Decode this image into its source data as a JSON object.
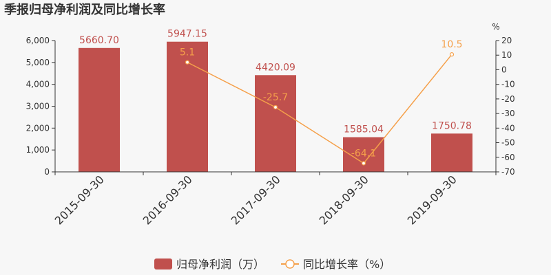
{
  "title": "季报归母净利润及同比增长率",
  "colors": {
    "bar": "#c0504d",
    "line": "#f5a04a",
    "axis": "#333333",
    "background": "#f7f7f7"
  },
  "chart_data": {
    "type": "bar",
    "title": "季报归母净利润及同比增长率",
    "categories": [
      "2015-09-30",
      "2016-09-30",
      "2017-09-30",
      "2018-09-30",
      "2019-09-30"
    ],
    "series": [
      {
        "name": "归母净利润（万）",
        "type": "bar",
        "axis": "left",
        "values": [
          5660.7,
          5947.15,
          4420.09,
          1585.04,
          1750.78
        ],
        "labels": [
          "5660.70",
          "5947.15",
          "4420.09",
          "1585.04",
          "1750.78"
        ]
      },
      {
        "name": "同比增长率（%）",
        "type": "line",
        "axis": "right",
        "values": [
          null,
          5.1,
          -25.7,
          -64.1,
          10.5
        ],
        "labels": [
          "",
          "5.1",
          "-25.7",
          "-64.1",
          "10.5"
        ]
      }
    ],
    "y_left": {
      "ylim": [
        0,
        6000
      ],
      "ticks": [
        0,
        1000,
        2000,
        3000,
        4000,
        5000,
        6000
      ],
      "tick_labels": [
        "0",
        "1,000",
        "2,000",
        "3,000",
        "4,000",
        "5,000",
        "6,000"
      ]
    },
    "y_right": {
      "unit": "%",
      "ylim": [
        -70,
        20
      ],
      "ticks": [
        20,
        10,
        0,
        -10,
        -20,
        -30,
        -40,
        -50,
        -60,
        -70
      ],
      "tick_labels": [
        "20",
        "10",
        "0",
        "-10",
        "-20",
        "-30",
        "-40",
        "-50",
        "-60",
        "-70"
      ]
    },
    "legend": [
      "归母净利润（万）",
      "同比增长率（%）"
    ],
    "legend_position": "bottom"
  }
}
